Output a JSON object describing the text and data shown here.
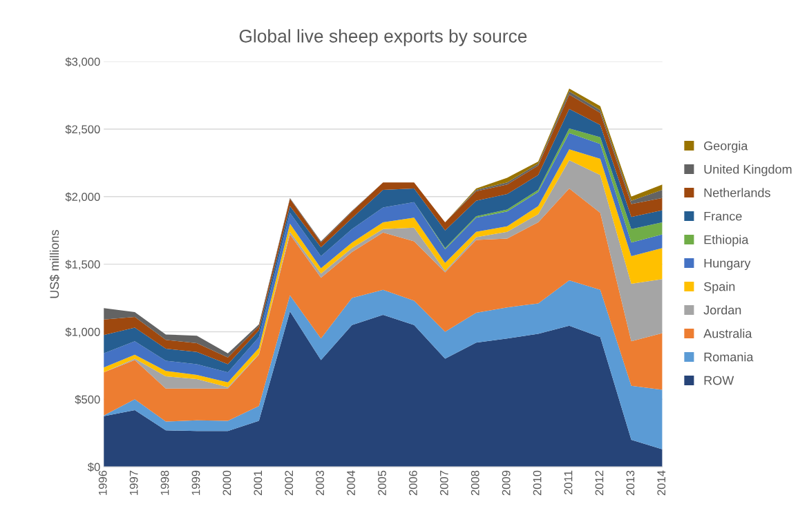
{
  "chart_data": {
    "type": "area",
    "stacked": true,
    "title": "Global live sheep exports by source",
    "ylabel": "US$ millions",
    "categories": [
      "1996",
      "1997",
      "1998",
      "1999",
      "2000",
      "2001",
      "2002",
      "2003",
      "2004",
      "2005",
      "2006",
      "2007",
      "2008",
      "2009",
      "2010",
      "2011",
      "2012",
      "2013",
      "2014"
    ],
    "series": [
      {
        "name": "ROW",
        "color": "#264478",
        "values": [
          375,
          420,
          270,
          265,
          265,
          340,
          1150,
          790,
          1050,
          1125,
          1050,
          800,
          920,
          950,
          985,
          1045,
          960,
          200,
          130
        ]
      },
      {
        "name": "Romania",
        "color": "#5b9bd5",
        "values": [
          5,
          80,
          65,
          80,
          75,
          110,
          120,
          160,
          200,
          185,
          180,
          200,
          220,
          230,
          225,
          335,
          350,
          400,
          440
        ]
      },
      {
        "name": "Australia",
        "color": "#ed7d31",
        "values": [
          320,
          290,
          245,
          235,
          240,
          380,
          450,
          450,
          340,
          425,
          440,
          440,
          540,
          510,
          600,
          680,
          570,
          330,
          420
        ]
      },
      {
        "name": "Jordan",
        "color": "#a5a5a5",
        "values": [
          0,
          10,
          90,
          70,
          10,
          5,
          20,
          30,
          30,
          25,
          100,
          10,
          20,
          50,
          60,
          210,
          280,
          425,
          400
        ]
      },
      {
        "name": "Spain",
        "color": "#ffc000",
        "values": [
          35,
          30,
          40,
          30,
          35,
          45,
          60,
          40,
          40,
          50,
          75,
          60,
          40,
          40,
          60,
          80,
          120,
          205,
          230
        ]
      },
      {
        "name": "Hungary",
        "color": "#4472c4",
        "values": [
          105,
          100,
          75,
          80,
          75,
          80,
          80,
          90,
          100,
          110,
          115,
          100,
          105,
          110,
          105,
          120,
          110,
          100,
          100
        ]
      },
      {
        "name": "Ethiopia",
        "color": "#70ad47",
        "values": [
          0,
          0,
          0,
          0,
          0,
          0,
          0,
          0,
          0,
          0,
          0,
          10,
          10,
          15,
          15,
          35,
          50,
          100,
          90
        ]
      },
      {
        "name": "France",
        "color": "#255e91",
        "values": [
          135,
          100,
          90,
          90,
          60,
          50,
          50,
          65,
          80,
          130,
          100,
          130,
          115,
          115,
          110,
          145,
          90,
          90,
          90
        ]
      },
      {
        "name": "Netherlands",
        "color": "#9e480e",
        "values": [
          115,
          80,
          65,
          65,
          50,
          30,
          55,
          35,
          50,
          55,
          45,
          60,
          70,
          70,
          70,
          105,
          90,
          95,
          90
        ]
      },
      {
        "name": "United Kingdom",
        "color": "#636363",
        "values": [
          85,
          35,
          40,
          55,
          30,
          15,
          5,
          10,
          5,
          0,
          0,
          0,
          10,
          15,
          15,
          25,
          20,
          25,
          60
        ]
      },
      {
        "name": "Georgia",
        "color": "#997300",
        "values": [
          0,
          0,
          0,
          0,
          0,
          0,
          0,
          0,
          0,
          0,
          0,
          0,
          10,
          35,
          15,
          20,
          30,
          30,
          40
        ]
      }
    ],
    "ylim": [
      0,
      3000
    ],
    "yticks": [
      {
        "value": 0,
        "label": "$0"
      },
      {
        "value": 500,
        "label": "$500"
      },
      {
        "value": 1000,
        "label": "$1,000"
      },
      {
        "value": 1500,
        "label": "$1,500"
      },
      {
        "value": 2000,
        "label": "$2,000"
      },
      {
        "value": 2500,
        "label": "$2,500"
      },
      {
        "value": 3000,
        "label": "$3,000"
      }
    ],
    "grid": "y",
    "legend": "right"
  }
}
